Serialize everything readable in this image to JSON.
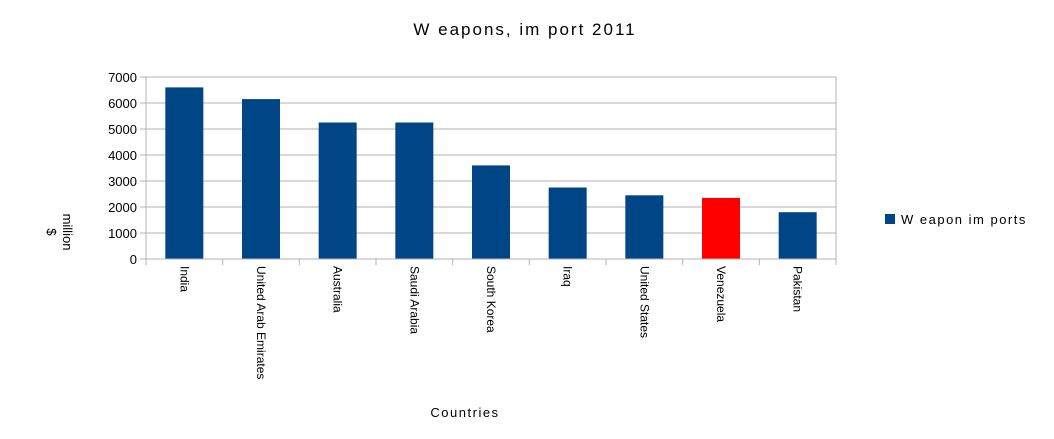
{
  "chart_data": {
    "type": "bar",
    "title": "W eapons, im port 2011",
    "xlabel": "Countries",
    "ylabel_lines": [
      "$",
      "million"
    ],
    "categories": [
      "India",
      "United Arab Emirates",
      "Australia",
      "Saudi Arabia",
      "South Korea",
      "Iraq",
      "United States",
      "Venezuela",
      "Pakistan"
    ],
    "series": [
      {
        "name": "W eapon im ports",
        "values": [
          6600,
          6150,
          5250,
          5250,
          3600,
          2750,
          2450,
          2350,
          1800
        ],
        "color": "#004586",
        "highlight": {
          "category": "Venezuela",
          "color": "#ff0000"
        }
      }
    ],
    "ylim": [
      0,
      7000
    ],
    "yticks": [
      0,
      1000,
      2000,
      3000,
      4000,
      5000,
      6000,
      7000
    ],
    "ytick_labels": [
      "0",
      "1000",
      "2000",
      "3000",
      "4000",
      "5000",
      "6000",
      "7000"
    ],
    "grid": true,
    "legend_position": "right"
  }
}
